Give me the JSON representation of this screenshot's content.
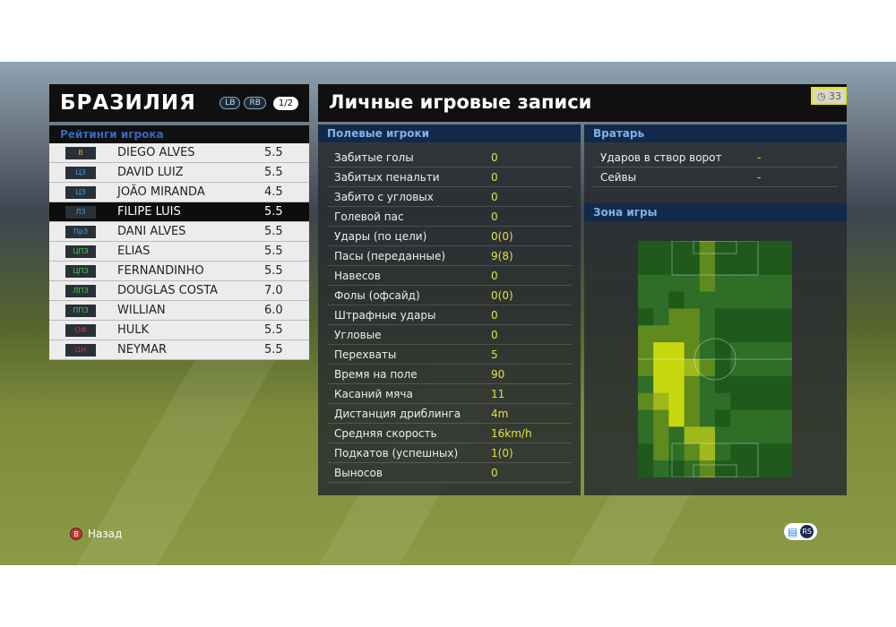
{
  "team": {
    "name": "БРАЗИЛИЯ",
    "lb": "LB",
    "rb": "RB",
    "page": "1/2",
    "ratings_label": "Рейтинги игрока"
  },
  "players": [
    {
      "pos": "В",
      "pos_color": "#e0a020",
      "name": "DIEGO ALVES",
      "rating": "5.5"
    },
    {
      "pos": "ЦЗ",
      "pos_color": "#3aa0e0",
      "name": "DAVID LUIZ",
      "rating": "5.5"
    },
    {
      "pos": "ЦЗ",
      "pos_color": "#3aa0e0",
      "name": "JOÃO MIRANDA",
      "rating": "4.5"
    },
    {
      "pos": "ЛЗ",
      "pos_color": "#3aa0e0",
      "name": "FILIPE LUIS",
      "rating": "5.5",
      "selected": true
    },
    {
      "pos": "ПрЗ",
      "pos_color": "#3aa0e0",
      "name": "DANI ALVES",
      "rating": "5.5"
    },
    {
      "pos": "ЦПЗ",
      "pos_color": "#40d040",
      "name": "ELIAS",
      "rating": "5.5"
    },
    {
      "pos": "ЦПЗ",
      "pos_color": "#40d040",
      "name": "FERNANDINHO",
      "rating": "5.5"
    },
    {
      "pos": "ЛПЗ",
      "pos_color": "#40d040",
      "name": "DOUGLAS COSTA",
      "rating": "7.0"
    },
    {
      "pos": "ППЗ",
      "pos_color": "#40d040",
      "name": "WILLIAN",
      "rating": "6.0"
    },
    {
      "pos": "ОФ",
      "pos_color": "#e03030",
      "name": "HULK",
      "rating": "5.5"
    },
    {
      "pos": "ЦН",
      "pos_color": "#e03030",
      "name": "NEYMAR",
      "rating": "5.5"
    }
  ],
  "main": {
    "title": "Личные игровые записи",
    "timer": "33",
    "field_label": "Полевые игроки",
    "gk_label": "Вратарь",
    "zone_label": "Зона игры"
  },
  "field_stats": [
    {
      "label": "Забитые голы",
      "value": "0"
    },
    {
      "label": "Забитых пенальти",
      "value": "0"
    },
    {
      "label": "Забито с угловых",
      "value": "0"
    },
    {
      "label": "Голевой пас",
      "value": "0"
    },
    {
      "label": "Удары (по цели)",
      "value": "0(0)"
    },
    {
      "label": "Пасы (переданные)",
      "value": "9(8)"
    },
    {
      "label": "Навесов",
      "value": "0"
    },
    {
      "label": "Фолы (офсайд)",
      "value": "0(0)"
    },
    {
      "label": "Штрафные удары",
      "value": "0"
    },
    {
      "label": "Угловые",
      "value": "0"
    },
    {
      "label": "Перехваты",
      "value": "5"
    },
    {
      "label": "Время на поле",
      "value": "90"
    },
    {
      "label": "Касаний мяча",
      "value": "11"
    },
    {
      "label": "Дистанция дриблинга",
      "value": "4m"
    },
    {
      "label": "Средняя скорость",
      "value": "16km/h"
    },
    {
      "label": "Подкатов (успешных)",
      "value": "1(0)"
    },
    {
      "label": "Выносов",
      "value": "0"
    }
  ],
  "gk_stats": [
    {
      "label": "Ударов в створ ворот",
      "value": "-"
    },
    {
      "label": "Сейвы",
      "value": "-"
    }
  ],
  "chart_data": {
    "type": "heatmap",
    "levels": [
      "#1f5a1c",
      "#2e6e26",
      "#5f8a1e",
      "#9fb81a",
      "#c8d80e"
    ],
    "grid": [
      [
        0,
        0,
        0,
        0,
        2,
        0,
        0,
        0,
        0,
        0
      ],
      [
        0,
        0,
        0,
        0,
        2,
        0,
        0,
        0,
        0,
        0
      ],
      [
        1,
        1,
        1,
        1,
        2,
        1,
        1,
        1,
        1,
        1
      ],
      [
        1,
        1,
        0,
        1,
        1,
        1,
        1,
        1,
        1,
        1
      ],
      [
        0,
        1,
        2,
        2,
        1,
        0,
        0,
        0,
        0,
        0
      ],
      [
        2,
        2,
        2,
        2,
        1,
        0,
        0,
        0,
        0,
        0
      ],
      [
        2,
        4,
        4,
        2,
        1,
        0,
        1,
        1,
        1,
        1
      ],
      [
        2,
        4,
        4,
        3,
        2,
        0,
        1,
        1,
        1,
        1
      ],
      [
        1,
        4,
        4,
        2,
        1,
        0,
        0,
        0,
        0,
        0
      ],
      [
        2,
        3,
        4,
        2,
        1,
        1,
        0,
        0,
        0,
        0
      ],
      [
        1,
        2,
        4,
        2,
        1,
        0,
        1,
        1,
        1,
        1
      ],
      [
        1,
        2,
        1,
        3,
        3,
        1,
        1,
        1,
        1,
        1
      ],
      [
        0,
        2,
        1,
        2,
        3,
        1,
        0,
        0,
        0,
        0
      ],
      [
        0,
        1,
        0,
        1,
        2,
        0,
        0,
        0,
        0,
        0
      ]
    ]
  },
  "footer": {
    "back_button": "B",
    "back_label": "Назад",
    "rs_label": "RS"
  }
}
